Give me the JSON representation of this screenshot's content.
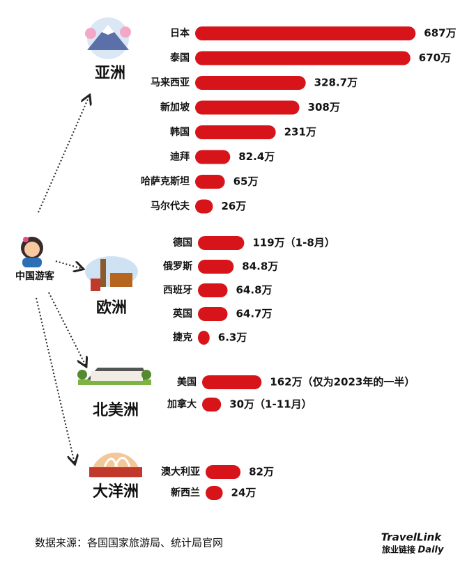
{
  "traveler_label": "中国游客",
  "source": "数据来源：各国国家旅游局、统计局官网",
  "logo": {
    "top": "TravelLink",
    "bottom_cn": "旅业链接",
    "bottom_en": "Daily"
  },
  "chart_data": [
    {
      "type": "bar",
      "title": "亚洲",
      "color": "#d7141a",
      "categories": [
        "日本",
        "泰国",
        "马来西亚",
        "新加坡",
        "韩国",
        "迪拜",
        "哈萨克斯坦",
        "马尔代夫"
      ],
      "values": [
        687,
        670,
        328.7,
        308,
        231,
        82.4,
        65,
        26
      ],
      "value_labels": [
        "687万",
        "670万",
        "328.7万",
        "308万",
        "231万",
        "82.4万",
        "65万",
        "26万"
      ]
    },
    {
      "type": "bar",
      "title": "欧洲",
      "color": "#d7141a",
      "categories": [
        "德国",
        "俄罗斯",
        "西班牙",
        "英国",
        "捷克"
      ],
      "values": [
        119,
        84.8,
        64.8,
        64.7,
        6.3
      ],
      "value_labels": [
        "119万（1-8月）",
        "84.8万",
        "64.8万",
        "64.7万",
        "6.3万"
      ]
    },
    {
      "type": "bar",
      "title": "北美洲",
      "color": "#d7141a",
      "categories": [
        "美国",
        "加拿大"
      ],
      "values": [
        162,
        30
      ],
      "value_labels": [
        "162万（仅为2023年的一半）",
        "30万（1-11月）"
      ]
    },
    {
      "type": "bar",
      "title": "大洋洲",
      "color": "#d7141a",
      "categories": [
        "澳大利亚",
        "新西兰"
      ],
      "values": [
        82,
        24
      ],
      "value_labels": [
        "82万",
        "24万"
      ]
    }
  ]
}
